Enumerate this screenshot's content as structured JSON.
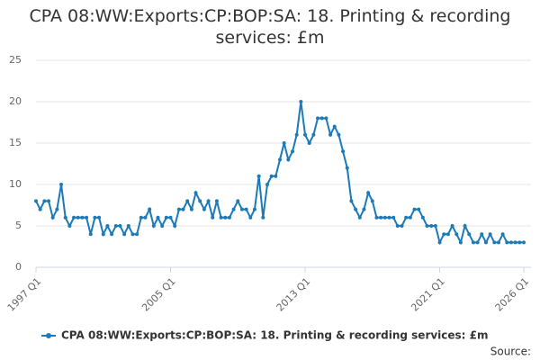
{
  "chart_data": {
    "type": "line",
    "title": "CPA 08:WW:Exports:CP:BOP:SA: 18. Printing & recording services: £m",
    "source": "Source:",
    "categories": [
      "1997 Q1",
      null,
      null,
      null,
      null,
      null,
      null,
      null,
      null,
      null,
      null,
      null,
      null,
      null,
      null,
      null,
      null,
      null,
      null,
      null,
      null,
      null,
      null,
      null,
      null,
      null,
      null,
      null,
      null,
      null,
      null,
      null,
      "2005 Q1",
      null,
      null,
      null,
      null,
      null,
      null,
      null,
      null,
      null,
      null,
      null,
      null,
      null,
      null,
      null,
      null,
      null,
      null,
      null,
      null,
      null,
      null,
      null,
      null,
      null,
      null,
      null,
      null,
      null,
      null,
      null,
      "2013 Q1",
      null,
      null,
      null,
      null,
      null,
      null,
      null,
      null,
      null,
      null,
      null,
      null,
      null,
      null,
      null,
      null,
      null,
      null,
      null,
      null,
      null,
      null,
      null,
      null,
      null,
      null,
      null,
      null,
      null,
      null,
      null,
      "2021 Q1",
      null,
      null,
      null,
      null,
      null,
      null,
      null,
      null,
      null,
      null,
      null,
      null,
      null,
      null,
      null,
      null,
      null,
      null,
      null,
      "2026 Q1"
    ],
    "series": [
      {
        "name": "CPA 08:WW:Exports:CP:BOP:SA: 18. Printing & recording services: £m",
        "color": "#1c7ab8",
        "values": [
          8,
          7,
          8,
          8,
          6,
          7,
          10,
          6,
          5,
          6,
          6,
          6,
          6,
          4,
          6,
          6,
          4,
          5,
          4,
          5,
          5,
          4,
          5,
          4,
          4,
          6,
          6,
          7,
          5,
          6,
          5,
          6,
          6,
          5,
          7,
          7,
          8,
          7,
          9,
          8,
          7,
          8,
          6,
          8,
          6,
          6,
          6,
          7,
          8,
          7,
          7,
          6,
          7,
          11,
          6,
          10,
          11,
          11,
          13,
          15,
          13,
          14,
          16,
          20,
          16,
          15,
          16,
          18,
          18,
          18,
          16,
          17,
          16,
          14,
          12,
          8,
          7,
          6,
          7,
          9,
          8,
          6,
          6,
          6,
          6,
          6,
          5,
          5,
          6,
          6,
          7,
          7,
          6,
          5,
          5,
          5,
          3,
          4,
          4,
          5,
          4,
          3,
          5,
          4,
          3,
          3,
          4,
          3,
          4,
          3,
          3,
          4,
          3,
          3,
          3,
          3,
          3
        ]
      }
    ],
    "ylim": [
      0,
      25
    ],
    "yticks": [
      0,
      5,
      10,
      15,
      20,
      25
    ],
    "grid": true
  }
}
